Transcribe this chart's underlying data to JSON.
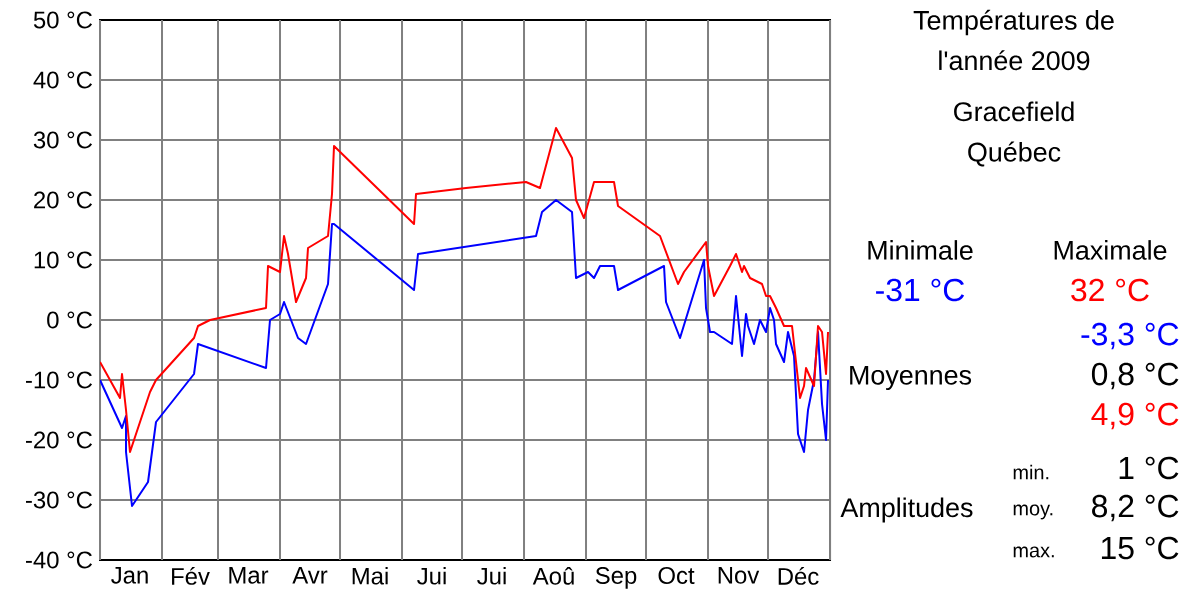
{
  "chart_data": {
    "type": "line",
    "title": "Températures de l'année 2009",
    "subtitle": "Gracefield Québec",
    "xlim": [
      "2009-01-01",
      "2010-01-01"
    ],
    "ylim": [
      -40,
      50
    ],
    "xticks": [
      {
        "value": "2009-01-01",
        "label": null
      },
      {
        "value": "2009-01-16",
        "label": "Jan"
      },
      {
        "value": "2009-02-01",
        "label": null
      },
      {
        "value": "2009-02-15",
        "label": "Fév"
      },
      {
        "value": "2009-03-01",
        "label": null
      },
      {
        "value": "2009-03-16",
        "label": "Mar"
      },
      {
        "value": "2009-04-01",
        "label": null
      },
      {
        "value": "2009-04-16",
        "label": "Avr"
      },
      {
        "value": "2009-05-01",
        "label": null
      },
      {
        "value": "2009-05-16",
        "label": "Mai"
      },
      {
        "value": "2009-06-01",
        "label": null
      },
      {
        "value": "2009-06-16",
        "label": "Jui"
      },
      {
        "value": "2009-07-01",
        "label": null
      },
      {
        "value": "2009-07-16",
        "label": "Jui"
      },
      {
        "value": "2009-08-01",
        "label": null
      },
      {
        "value": "2009-08-16",
        "label": "Aoû"
      },
      {
        "value": "2009-09-01",
        "label": null
      },
      {
        "value": "2009-09-16",
        "label": "Sep"
      },
      {
        "value": "2009-10-01",
        "label": null
      },
      {
        "value": "2009-10-16",
        "label": "Oct"
      },
      {
        "value": "2009-11-01",
        "label": null
      },
      {
        "value": "2009-11-16",
        "label": "Nov"
      },
      {
        "value": "2009-12-01",
        "label": null
      },
      {
        "value": "2009-12-16",
        "label": "Déc"
      },
      {
        "value": "2010-01-01",
        "label": null
      }
    ],
    "yticks": [
      {
        "value": -40,
        "label": "-40 °C"
      },
      {
        "value": -30,
        "label": "-30 °C"
      },
      {
        "value": -20,
        "label": "-20 °C"
      },
      {
        "value": -10,
        "label": "-10 °C"
      },
      {
        "value": 0,
        "label": "0 °C"
      },
      {
        "value": 10,
        "label": "10 °C"
      },
      {
        "value": 20,
        "label": "20 °C"
      },
      {
        "value": 30,
        "label": "30 °C"
      },
      {
        "value": 40,
        "label": "40 °C"
      },
      {
        "value": 50,
        "label": "50 °C"
      }
    ],
    "grid": true,
    "marker": "none",
    "line_style": "solid",
    "series": [
      {
        "color": "#0000ff",
        "x": [
          "2009-01-01",
          "2009-01-12",
          "2009-01-14",
          "2009-01-14",
          "2009-01-17",
          "2009-01-25",
          "2009-01-29",
          "2009-02-17",
          "2009-02-19",
          "2009-03-25",
          "2009-03-27",
          "2009-04-01",
          "2009-04-03",
          "2009-04-10",
          "2009-04-14",
          "2009-04-25",
          "2009-04-27",
          "2009-04-28",
          "2009-06-07",
          "2009-06-09",
          "2009-08-07",
          "2009-08-10",
          "2009-08-17",
          "2009-08-25",
          "2009-08-27",
          "2009-09-02",
          "2009-09-05",
          "2009-09-08",
          "2009-09-15",
          "2009-09-17",
          "2009-10-10",
          "2009-10-11",
          "2009-10-18",
          "2009-10-30",
          "2009-10-31",
          "2009-11-02",
          "2009-11-04",
          "2009-11-13",
          "2009-11-15",
          "2009-11-18",
          "2009-11-20",
          "2009-11-21",
          "2009-11-24",
          "2009-11-27",
          "2009-11-30",
          "2009-12-02",
          "2009-12-04",
          "2009-12-05",
          "2009-12-09",
          "2009-12-11",
          "2009-12-14",
          "2009-12-16",
          "2009-12-19",
          "2009-12-21",
          "2009-12-24",
          "2009-12-26",
          "2009-12-28",
          "2009-12-30",
          "2009-12-31"
        ],
        "values": [
          -10,
          -18,
          -16,
          -22,
          -31,
          -27,
          -17,
          -9,
          -4,
          -8,
          0,
          1,
          3,
          -3,
          -4,
          6,
          16,
          16,
          5,
          11,
          14,
          18,
          20,
          18,
          7,
          8,
          7,
          9,
          9,
          5,
          9,
          3,
          -3,
          10,
          2,
          -2,
          -2,
          -4,
          4,
          -6,
          1,
          -1,
          -4,
          0,
          -2,
          2,
          0,
          -4,
          -7,
          -2,
          -6,
          -19,
          -22,
          -15,
          -10,
          -2,
          -14,
          -20,
          -10
        ]
      },
      {
        "color": "#ff0000",
        "x": [
          "2009-01-01",
          "2009-01-11",
          "2009-01-12",
          "2009-01-14",
          "2009-01-16",
          "2009-01-26",
          "2009-01-29",
          "2009-02-17",
          "2009-02-19",
          "2009-02-25",
          "2009-03-25",
          "2009-03-26",
          "2009-04-01",
          "2009-04-03",
          "2009-04-05",
          "2009-04-09",
          "2009-04-14",
          "2009-04-15",
          "2009-04-25",
          "2009-04-27",
          "2009-04-28",
          "2009-06-07",
          "2009-06-08",
          "2009-07-03",
          "2009-08-02",
          "2009-08-09",
          "2009-08-17",
          "2009-08-25",
          "2009-08-27",
          "2009-08-31",
          "2009-09-05",
          "2009-09-15",
          "2009-09-17",
          "2009-10-08",
          "2009-10-17",
          "2009-10-20",
          "2009-10-31",
          "2009-11-01",
          "2009-11-04",
          "2009-11-12",
          "2009-11-15",
          "2009-11-18",
          "2009-11-19",
          "2009-11-22",
          "2009-11-28",
          "2009-11-30",
          "2009-12-02",
          "2009-12-05",
          "2009-12-09",
          "2009-12-13",
          "2009-12-17",
          "2009-12-19",
          "2009-12-20",
          "2009-12-24",
          "2009-12-26",
          "2009-12-28",
          "2009-12-30",
          "2009-12-31"
        ],
        "values": [
          -7,
          -13,
          -9,
          -15,
          -22,
          -12,
          -10,
          -3,
          -1,
          0,
          2,
          9,
          8,
          14,
          11,
          3,
          7,
          12,
          14,
          21,
          29,
          16,
          21,
          22,
          23,
          22,
          32,
          27,
          20,
          17,
          23,
          23,
          19,
          14,
          6,
          8,
          13,
          9,
          4,
          9,
          11,
          8,
          9,
          7,
          6,
          4,
          4,
          2,
          -1,
          -1,
          -13,
          -11,
          -8,
          -11,
          -1,
          -2,
          -9,
          -2
        ]
      }
    ],
    "annotations": [
      "Minimale",
      "Maximale",
      "-31 °C",
      "32 °C",
      "-3,3 °C",
      "Moyennes",
      "0,8 °C",
      "4,9 °C",
      "min.",
      "1 °C",
      "Amplitudes",
      "moy.",
      "8,2 °C",
      "max.",
      "15 °C"
    ]
  }
}
